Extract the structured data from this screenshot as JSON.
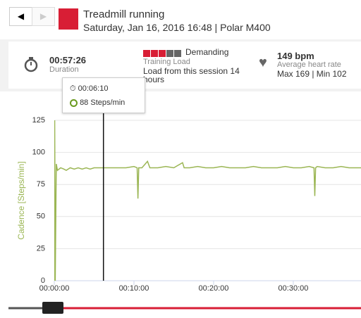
{
  "header": {
    "title": "Treadmill running",
    "subtitle": "Saturday, Jan 16, 2016 16:48 | Polar M400"
  },
  "summary": {
    "duration": {
      "value": "00:57:26",
      "label": "Duration"
    },
    "training_load": {
      "level": "Demanding",
      "label": "Training Load",
      "detail": "Load from this session 14 hours"
    },
    "heart_rate": {
      "value": "149 bpm",
      "label": "Average heart rate",
      "range": "Max 169 | Min 102"
    }
  },
  "tooltip": {
    "time": "00:06:10",
    "value": "88 Steps/min"
  },
  "chart_data": {
    "type": "line",
    "y_label": "Cadence [Steps/min]",
    "color": "#9bb654",
    "x": [
      0,
      0.05,
      0.12,
      0.25,
      0.4,
      0.8,
      1.2,
      1.5,
      2,
      2.5,
      3,
      3.5,
      4,
      4.5,
      5,
      5.5,
      6,
      6.17,
      7,
      8,
      9,
      10,
      10.4,
      10.5,
      10.6,
      11,
      11.7,
      12,
      13,
      14,
      15,
      16.1,
      16.3,
      17,
      18,
      19,
      20,
      21,
      22,
      23,
      24,
      25,
      26,
      27,
      28,
      29,
      30,
      31,
      32,
      32.6,
      32.7,
      32.8,
      33,
      34,
      35,
      36,
      37,
      38,
      38.5
    ],
    "values": [
      0,
      125,
      0,
      91,
      86,
      88,
      87,
      86,
      88,
      87,
      88,
      87,
      88,
      87,
      88,
      88,
      88,
      88,
      88,
      88,
      88,
      89,
      88,
      64,
      88,
      88,
      93,
      88,
      88,
      89,
      88,
      92,
      88,
      88,
      89,
      88,
      88,
      89,
      88,
      88,
      88,
      89,
      88,
      88,
      88,
      89,
      88,
      88,
      89,
      88,
      66,
      88,
      89,
      88,
      88,
      89,
      88,
      88,
      88
    ],
    "xlim": [
      0,
      38.5
    ],
    "xticks": [
      {
        "value": 0,
        "label": "00:00:00"
      },
      {
        "value": 10,
        "label": "00:10:00"
      },
      {
        "value": 20,
        "label": "00:20:00"
      },
      {
        "value": 30,
        "label": "00:30:00"
      }
    ],
    "ylim": [
      0,
      125
    ],
    "yticks": [
      0,
      25,
      50,
      75,
      100,
      125
    ],
    "grid": true,
    "cursor_x": 6.17
  }
}
